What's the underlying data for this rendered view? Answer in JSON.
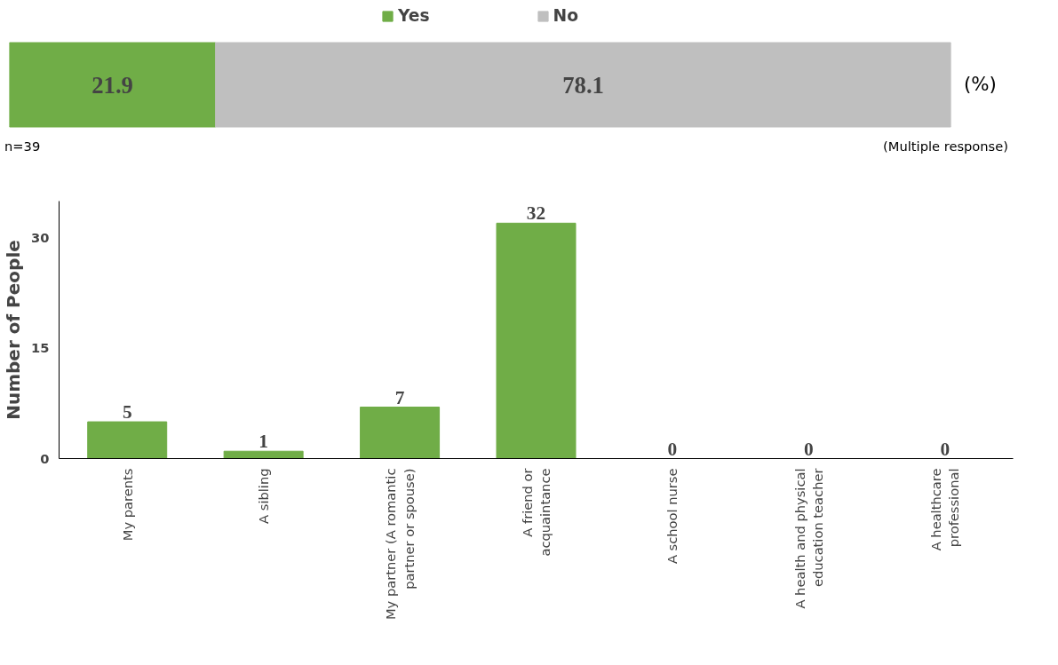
{
  "chart_data": [
    {
      "type": "bar",
      "orientation": "horizontal",
      "stacked": true,
      "categories": [
        null
      ],
      "xlim": [
        0,
        100
      ],
      "tick_labels": false,
      "data_labels": true,
      "legend": "top",
      "annotations": [
        "(%)"
      ],
      "series": [
        {
          "name": "Yes",
          "color": "#70ad47",
          "values": [
            21.9
          ]
        },
        {
          "name": "No",
          "color": "#bfbfbf",
          "values": [
            78.1
          ]
        }
      ]
    },
    {
      "type": "bar",
      "categories": [
        "My parents",
        "A sibling",
        "My partner (A romantic partner or spouse)",
        "A friend or acquaintance",
        "A school nurse",
        "A health and physical education teacher",
        "A healthcare professional"
      ],
      "values": [
        5,
        1,
        7,
        32,
        0,
        0,
        0
      ],
      "color": "#70ad47",
      "ylabel": "Number of People",
      "ylim": [
        0,
        35
      ],
      "yticks": [
        0,
        15,
        30
      ],
      "grid": false,
      "data_labels": true,
      "annotations": [
        "n=39",
        "(Multiple response)"
      ]
    }
  ]
}
